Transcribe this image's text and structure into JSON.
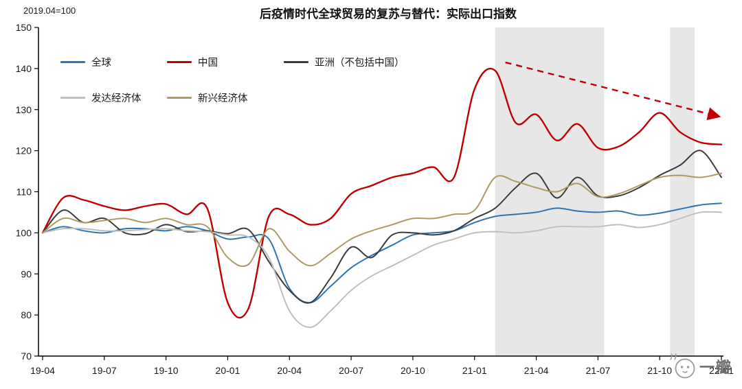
{
  "note": "2019.04=100",
  "title": "后疫情时代全球贸易的复苏与替代：实际出口指数",
  "watermark": {
    "text": "一瓣"
  },
  "chart_data": {
    "type": "line",
    "title": "后疫情时代全球贸易的复苏与替代：实际出口指数",
    "subtitle_note": "2019.04=100",
    "x": [
      "19-04",
      "19-05",
      "19-06",
      "19-07",
      "19-08",
      "19-09",
      "19-10",
      "19-11",
      "19-12",
      "20-01",
      "20-02",
      "20-03",
      "20-04",
      "20-05",
      "20-06",
      "20-07",
      "20-08",
      "20-09",
      "20-10",
      "20-11",
      "20-12",
      "21-01",
      "21-02",
      "21-03",
      "21-04",
      "21-05",
      "21-06",
      "21-07",
      "21-08",
      "21-09",
      "21-10",
      "21-11",
      "21-12",
      "22-01"
    ],
    "x_tick_every": 3,
    "x_tick_labels": [
      "19-04",
      "19-07",
      "19-10",
      "20-01",
      "20-04",
      "20-07",
      "20-10",
      "21-01",
      "21-04",
      "21-07",
      "21-10",
      "22-01"
    ],
    "ylim": [
      70,
      150
    ],
    "y_ticks": [
      70,
      80,
      90,
      100,
      110,
      120,
      130,
      140,
      150
    ],
    "grid": false,
    "legend_position": "top-left-inside",
    "band_color": "#E3E3E3",
    "series": [
      {
        "name": "全球",
        "color": "#2E75B6",
        "values": [
          100,
          101.5,
          100.5,
          100,
          101,
          101,
          100.5,
          101.5,
          100.5,
          98.5,
          99,
          98.5,
          86.5,
          83,
          87,
          91.5,
          94.5,
          97,
          99.5,
          100,
          100.5,
          102.5,
          104,
          104.5,
          105,
          106,
          105.3,
          105,
          105.3,
          104.3,
          104.8,
          105.8,
          106.8,
          107.2
        ]
      },
      {
        "name": "中国",
        "color": "#C00000",
        "values": [
          100,
          108.5,
          108,
          106.5,
          105.5,
          106.5,
          107,
          104.5,
          106,
          83,
          81.5,
          104,
          104.5,
          102,
          103.5,
          109.5,
          111.5,
          113.5,
          114.5,
          116,
          113.5,
          135,
          139.5,
          126.8,
          128.8,
          122.5,
          126.5,
          120.7,
          121,
          124.5,
          129.2,
          124.5,
          122,
          121.5
        ]
      },
      {
        "name": "亚洲（不包括中国）",
        "color": "#3B3B3B",
        "values": [
          100,
          105.5,
          102.5,
          103.5,
          100,
          99.8,
          102,
          100.3,
          100.5,
          99.8,
          100.8,
          93,
          86,
          83,
          89,
          96.5,
          94,
          99.5,
          100,
          99.5,
          100.5,
          103.5,
          106,
          111,
          114.5,
          108.5,
          113.5,
          109,
          109,
          111,
          114,
          116.5,
          120,
          113.5
        ]
      },
      {
        "name": "发达经济体",
        "color": "#BFBFBF",
        "values": [
          100,
          101,
          101,
          100.5,
          100.5,
          100.8,
          101,
          100.5,
          100.3,
          99.5,
          99,
          94,
          81,
          77,
          81,
          86,
          89.5,
          92,
          94.5,
          97,
          98.5,
          100,
          100.3,
          100,
          100.5,
          101.5,
          101.5,
          101.5,
          102,
          101.3,
          102,
          103.5,
          105,
          105
        ]
      },
      {
        "name": "新兴经济体",
        "color": "#AC9A62",
        "values": [
          100,
          103.5,
          102.5,
          103,
          103.5,
          102.5,
          103.5,
          102,
          101.5,
          94,
          92.3,
          101,
          95.5,
          92,
          95,
          98.5,
          100.5,
          102,
          103.5,
          103.5,
          104.5,
          105.5,
          113.5,
          112.5,
          111,
          110,
          112,
          108.8,
          109.5,
          111.5,
          113.5,
          114,
          113.5,
          114.5
        ]
      }
    ],
    "shaded_bands": [
      {
        "from": "21-02",
        "to": "21-07",
        "start_index": 22,
        "end_index": 27.3
      },
      {
        "from": "21-10",
        "to": "21-11",
        "start_index": 30.5,
        "end_index": 31.7
      }
    ],
    "trend_arrow": {
      "start_index": 22.5,
      "start_value": 141.5,
      "end_index": 32.9,
      "end_value": 128.3,
      "color": "#C00000",
      "style": "dashed"
    }
  }
}
